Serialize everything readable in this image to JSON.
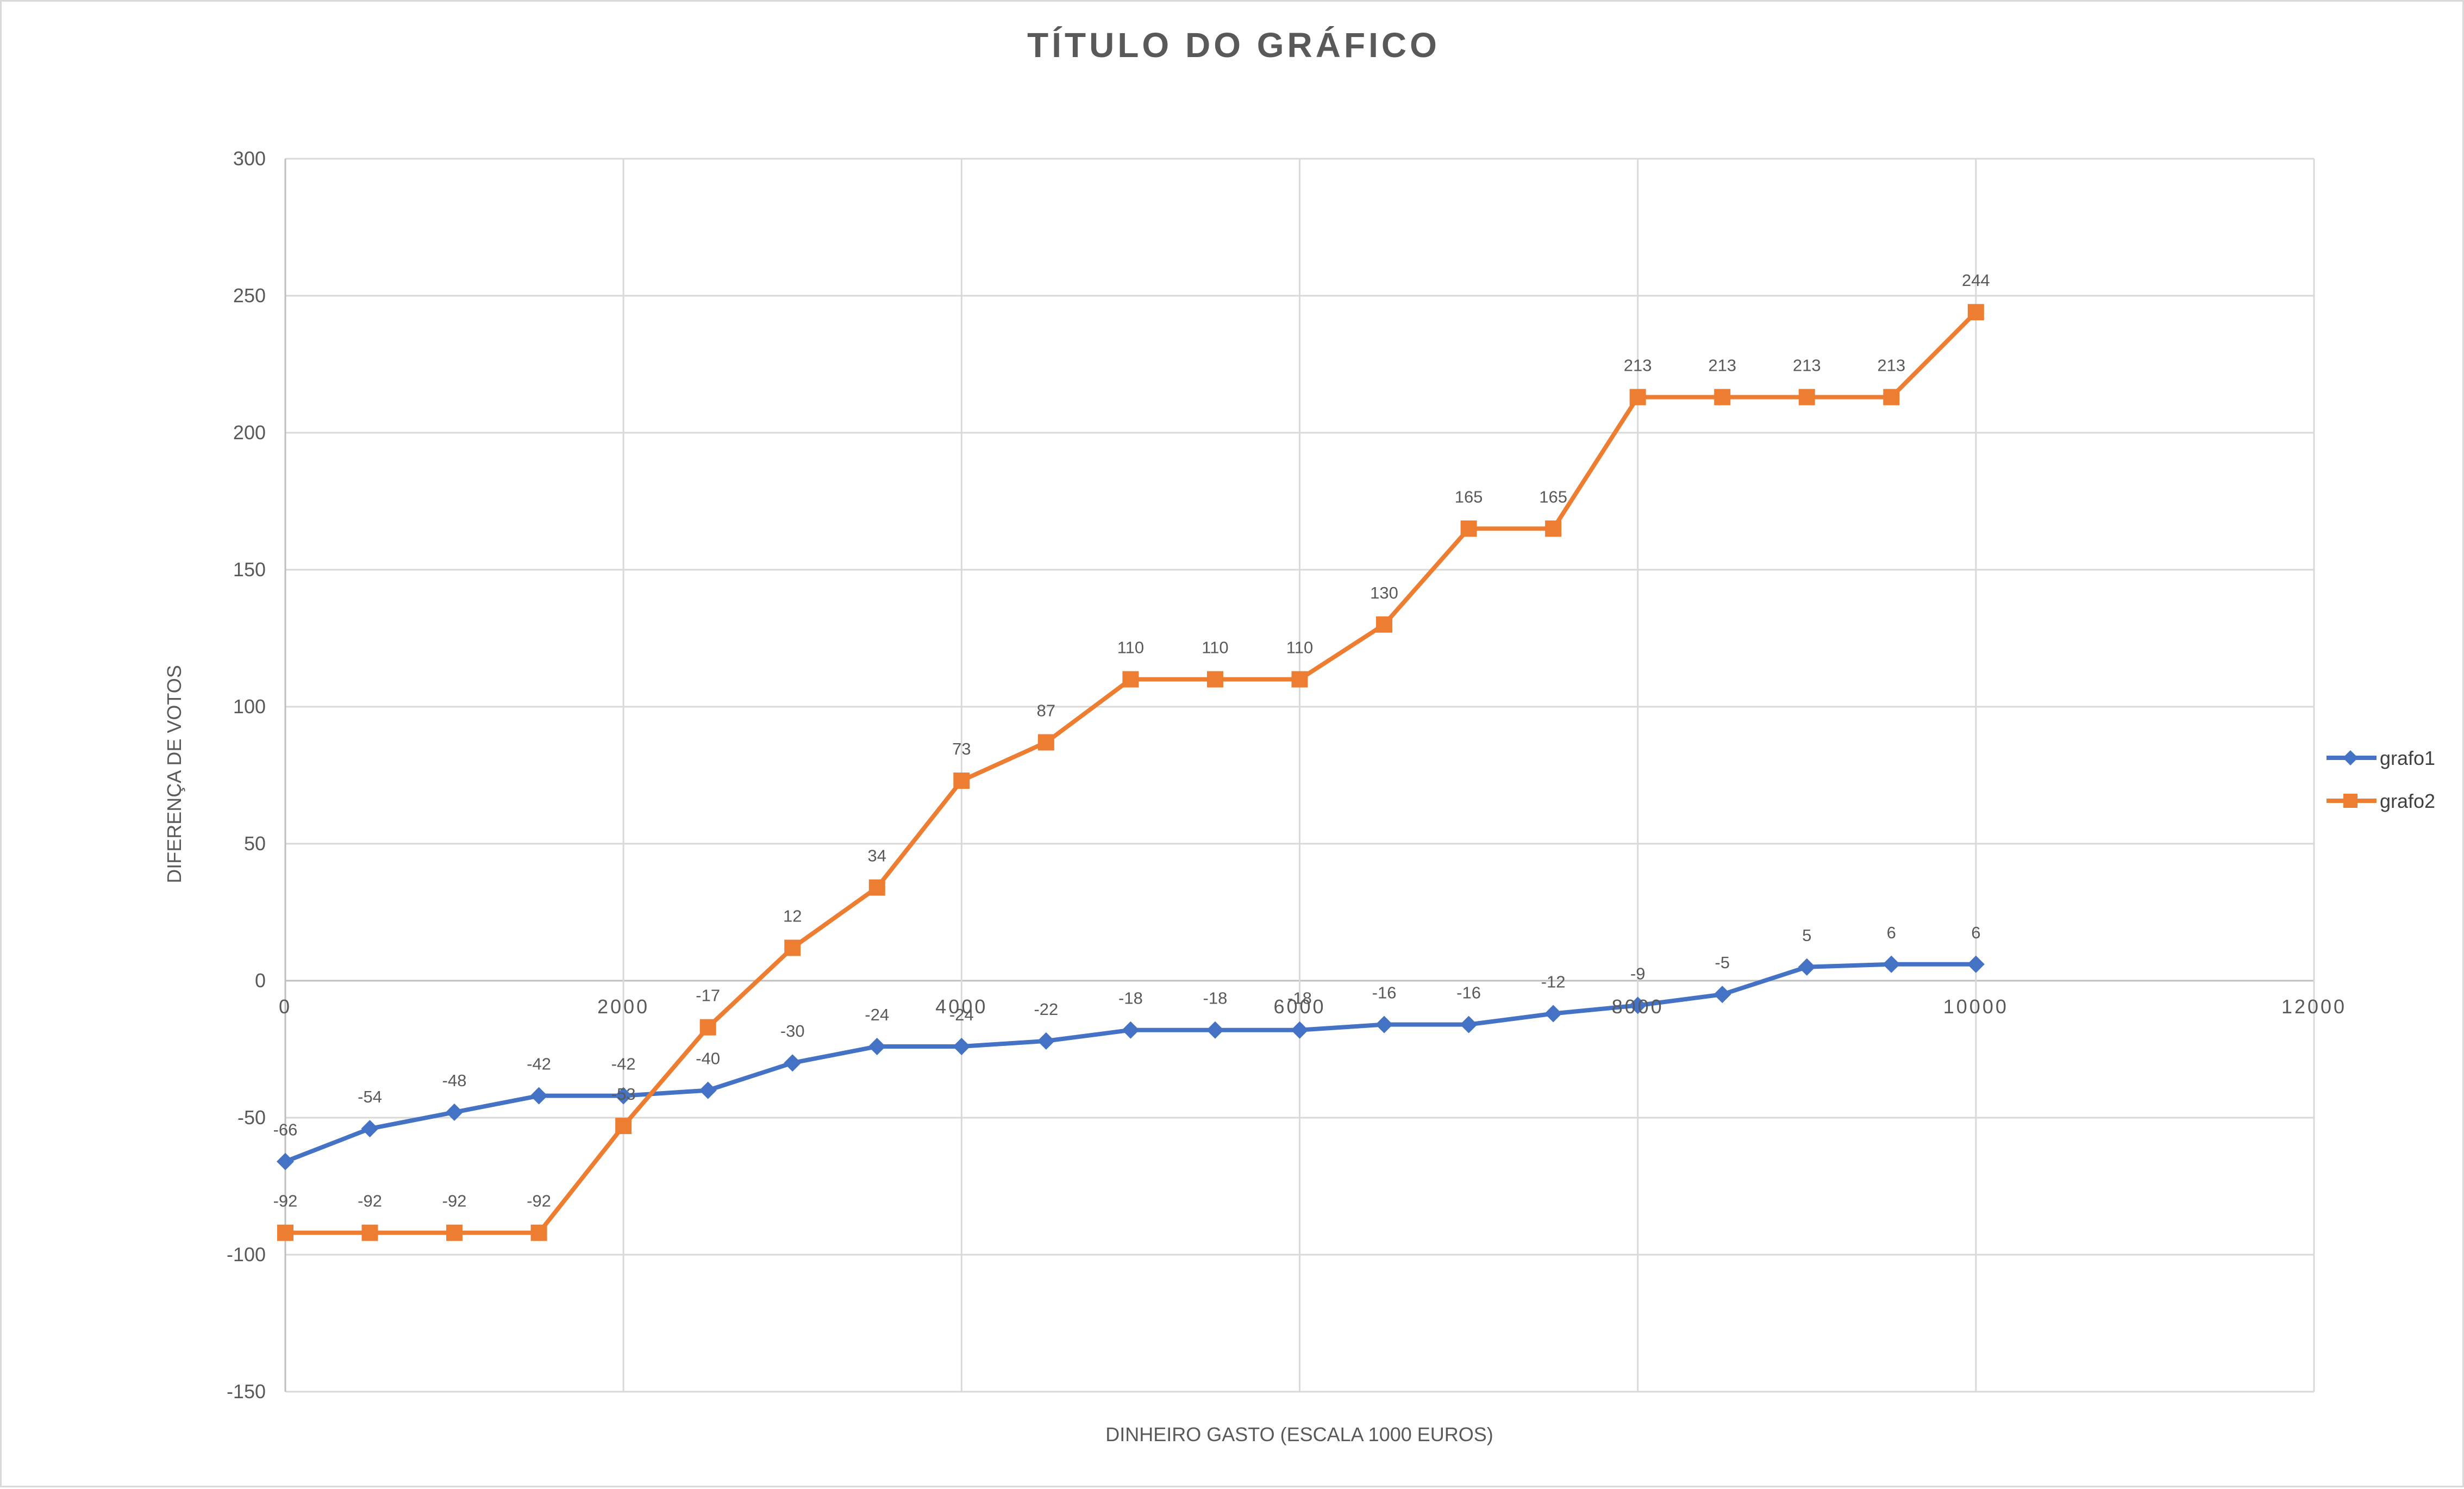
{
  "chart_data": {
    "type": "line",
    "title": "TÍTULO DO GRÁFICO",
    "xlabel": "DINHEIRO GASTO (ESCALA 1000 EUROS)",
    "ylabel": "DIFERENÇA DE VOTOS",
    "xlim": [
      0,
      12000
    ],
    "ylim": [
      -150,
      300
    ],
    "xticks": [
      0,
      2000,
      4000,
      6000,
      8000,
      10000,
      12000
    ],
    "yticks": [
      -150,
      -100,
      -50,
      0,
      50,
      100,
      150,
      200,
      250,
      300
    ],
    "grid": true,
    "legend_position": "right",
    "x": [
      0,
      500,
      1000,
      1500,
      2000,
      2500,
      3000,
      3500,
      4000,
      4500,
      5000,
      5500,
      6000,
      6500,
      7000,
      7500,
      8000,
      8500,
      9000,
      9500,
      10000
    ],
    "series": [
      {
        "name": "grafo1",
        "color": "#4472c4",
        "marker": "diamond",
        "values": [
          -66,
          -54,
          -48,
          -42,
          -42,
          -40,
          -30,
          -24,
          -24,
          -22,
          -18,
          -18,
          -18,
          -16,
          -16,
          -12,
          -9,
          -5,
          5,
          6,
          6
        ],
        "labels": [
          "-66",
          "-54",
          "-48",
          "-42",
          "-42",
          "-40",
          "-30",
          "-24",
          "-24",
          "-22",
          "-18",
          "-18",
          "-18",
          "-16",
          "-16",
          "-12",
          "-9",
          "-5",
          "5",
          "6",
          "6"
        ]
      },
      {
        "name": "grafo2",
        "color": "#ed7d31",
        "marker": "square",
        "values": [
          -92,
          -92,
          -92,
          -92,
          -53,
          -17,
          12,
          34,
          73,
          87,
          110,
          110,
          110,
          130,
          165,
          165,
          213,
          213,
          213,
          213,
          244
        ],
        "labels": [
          "-92",
          "-92",
          "-92",
          "-92",
          "-53",
          "-17",
          "12",
          "34",
          "73",
          "87",
          "110",
          "110",
          "110",
          "130",
          "165",
          "165",
          "213",
          "213",
          "213",
          "213",
          "244"
        ]
      }
    ]
  }
}
